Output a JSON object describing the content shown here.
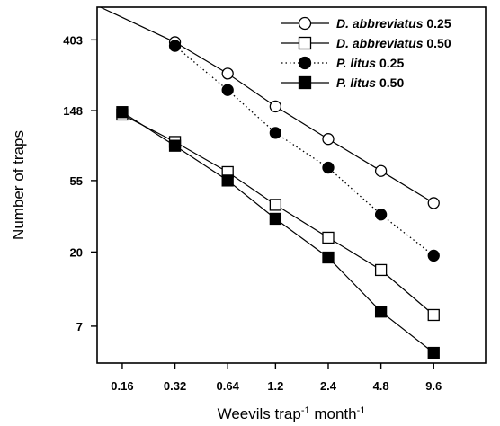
{
  "chart_data": {
    "type": "line",
    "title": "",
    "xscale": "log2",
    "yscale": "log",
    "grid": false,
    "legend_position": "top-right",
    "xlabel": {
      "main": "Weevils trap",
      "sup1": "-1",
      "mid": " month",
      "sup2": "-1"
    },
    "ylabel": "Number of traps",
    "x_ticks": [
      {
        "value": 0.16,
        "label": "0.16"
      },
      {
        "value": 0.32,
        "label": "0.32"
      },
      {
        "value": 0.64,
        "label": "0.64"
      },
      {
        "value": 1.2,
        "label": "1.2"
      },
      {
        "value": 2.4,
        "label": "2.4"
      },
      {
        "value": 4.8,
        "label": "4.8"
      },
      {
        "value": 9.6,
        "label": "9.6"
      }
    ],
    "y_ticks": [
      {
        "value": 7,
        "label": "7"
      },
      {
        "value": 20,
        "label": "20"
      },
      {
        "value": 55,
        "label": "55"
      },
      {
        "value": 148,
        "label": "148"
      },
      {
        "value": 403,
        "label": "403"
      }
    ],
    "xlim": [
      0.115,
      19.0
    ],
    "ylim": [
      4.15,
      640
    ],
    "series": [
      {
        "italic": "D. abbreviatus",
        "suffix": " 0.25",
        "marker": "circle",
        "fill": "none",
        "line": "solid",
        "line_start": {
          "x": 0.12,
          "y": 640
        },
        "points": [
          {
            "x": 0.32,
            "y": 390
          },
          {
            "x": 0.64,
            "y": 250
          },
          {
            "x": 1.2,
            "y": 157
          },
          {
            "x": 2.4,
            "y": 99
          },
          {
            "x": 4.8,
            "y": 63
          },
          {
            "x": 9.6,
            "y": 40
          }
        ]
      },
      {
        "italic": "D. abbreviatus",
        "suffix": " 0.50",
        "marker": "square",
        "fill": "none",
        "line": "solid",
        "points": [
          {
            "x": 0.16,
            "y": 140
          },
          {
            "x": 0.32,
            "y": 95
          },
          {
            "x": 0.64,
            "y": 62
          },
          {
            "x": 1.2,
            "y": 39
          },
          {
            "x": 2.4,
            "y": 24.5
          },
          {
            "x": 4.8,
            "y": 15.5
          },
          {
            "x": 9.6,
            "y": 8.2
          }
        ]
      },
      {
        "italic": "P. litus",
        "suffix": " 0.25",
        "marker": "circle",
        "fill": "#000000",
        "line": "dotted",
        "points": [
          {
            "x": 0.32,
            "y": 370
          },
          {
            "x": 0.64,
            "y": 198
          },
          {
            "x": 1.2,
            "y": 108
          },
          {
            "x": 2.4,
            "y": 66
          },
          {
            "x": 4.8,
            "y": 34
          },
          {
            "x": 9.6,
            "y": 19
          }
        ]
      },
      {
        "italic": "P. litus",
        "suffix": " 0.50",
        "marker": "square",
        "fill": "#000000",
        "line": "solid",
        "points": [
          {
            "x": 0.16,
            "y": 145
          },
          {
            "x": 0.32,
            "y": 90
          },
          {
            "x": 0.64,
            "y": 55
          },
          {
            "x": 1.2,
            "y": 32
          },
          {
            "x": 2.4,
            "y": 18.5
          },
          {
            "x": 4.8,
            "y": 8.6
          },
          {
            "x": 9.6,
            "y": 4.8
          }
        ]
      }
    ]
  }
}
